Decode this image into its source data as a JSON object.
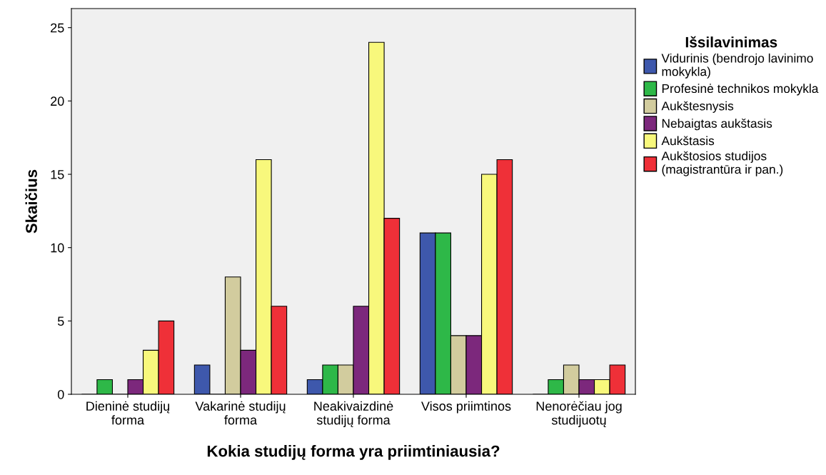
{
  "chart_data": {
    "type": "bar",
    "xlabel": "Kokia studijų forma yra priimtiniausia?",
    "ylabel": "Skaičius",
    "legend_title": "Išsilavinimas",
    "legend": "right",
    "grid": false,
    "categories": [
      "Dieninė studijų\nforma",
      "Vakarinė studijų\nforma",
      "Neakivaizdinė\nstudijų forma",
      "Visos priimtinos",
      "Nenorėčiau jog\nstudijuotų"
    ],
    "ylim": [
      0,
      26.3
    ],
    "yticks": [
      0,
      5,
      10,
      15,
      20,
      25
    ],
    "series": [
      {
        "name": "Vidurinis (bendrojo lavinimo\nmokykla)",
        "color": "#3e58ac",
        "values": [
          0,
          2,
          1,
          11,
          0
        ]
      },
      {
        "name": "Profesinė technikos mokykla",
        "color": "#2eb848",
        "values": [
          1,
          0,
          2,
          11,
          1
        ]
      },
      {
        "name": "Aukštesnysis",
        "color": "#d2cc9e",
        "values": [
          0,
          8,
          2,
          4,
          2
        ]
      },
      {
        "name": "Nebaigtas aukštasis",
        "color": "#7c287c",
        "values": [
          1,
          3,
          6,
          4,
          1
        ]
      },
      {
        "name": "Aukštasis",
        "color": "#f8f87c",
        "values": [
          3,
          16,
          24,
          15,
          1
        ]
      },
      {
        "name": "Aukštosios studijos\n(magistrantūra ir pan.)",
        "color": "#ef3038",
        "values": [
          5,
          6,
          12,
          16,
          2
        ]
      }
    ]
  }
}
